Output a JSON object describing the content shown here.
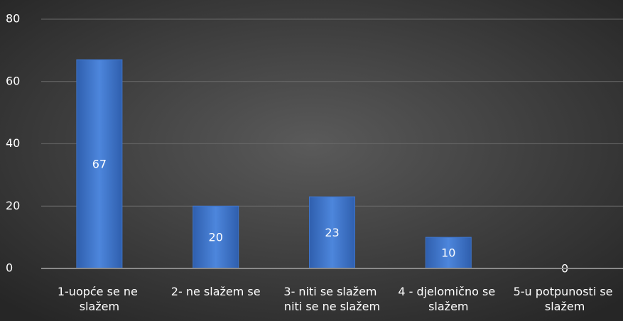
{
  "chart_data": {
    "type": "bar",
    "categories": [
      "1-uopće se ne slažem",
      "2- ne slažem se",
      "3- niti se slažem niti se ne slažem",
      "4 - djelomično se slažem",
      "5-u potpunosti se slažem"
    ],
    "values": [
      67,
      20,
      23,
      10,
      0
    ],
    "color": "#3f74c9",
    "ylim": [
      0,
      80
    ],
    "yticks": [
      0,
      20,
      40,
      60,
      80
    ],
    "grid": true
  }
}
